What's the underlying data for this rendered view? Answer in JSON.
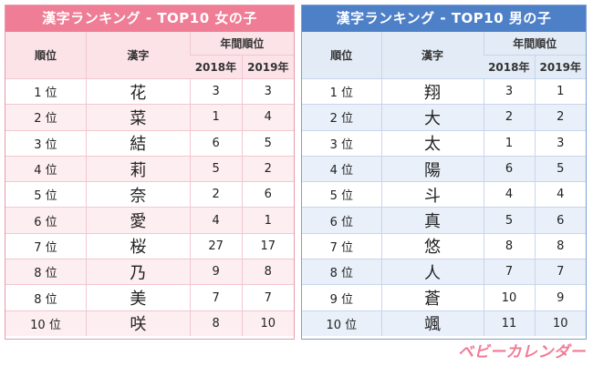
{
  "girls": {
    "title": "漢字ランキング - TOP10 女の子",
    "header": {
      "rank": "順位",
      "kanji": "漢字",
      "annual": "年間順位",
      "y2018": "2018年",
      "y2019": "2019年"
    },
    "rows": [
      {
        "rank": "1 位",
        "kanji": "花",
        "y2018": "3",
        "y2019": "3"
      },
      {
        "rank": "2 位",
        "kanji": "菜",
        "y2018": "1",
        "y2019": "4"
      },
      {
        "rank": "3 位",
        "kanji": "結",
        "y2018": "6",
        "y2019": "5"
      },
      {
        "rank": "4 位",
        "kanji": "莉",
        "y2018": "5",
        "y2019": "2"
      },
      {
        "rank": "5 位",
        "kanji": "奈",
        "y2018": "2",
        "y2019": "6"
      },
      {
        "rank": "6 位",
        "kanji": "愛",
        "y2018": "4",
        "y2019": "1"
      },
      {
        "rank": "7 位",
        "kanji": "桜",
        "y2018": "27",
        "y2019": "17"
      },
      {
        "rank": "8 位",
        "kanji": "乃",
        "y2018": "9",
        "y2019": "8"
      },
      {
        "rank": "8 位",
        "kanji": "美",
        "y2018": "7",
        "y2019": "7"
      },
      {
        "rank": "10 位",
        "kanji": "咲",
        "y2018": "8",
        "y2019": "10"
      }
    ]
  },
  "boys": {
    "title": "漢字ランキング - TOP10 男の子",
    "header": {
      "rank": "順位",
      "kanji": "漢字",
      "annual": "年間順位",
      "y2018": "2018年",
      "y2019": "2019年"
    },
    "rows": [
      {
        "rank": "1 位",
        "kanji": "翔",
        "y2018": "3",
        "y2019": "1"
      },
      {
        "rank": "2 位",
        "kanji": "大",
        "y2018": "2",
        "y2019": "2"
      },
      {
        "rank": "3 位",
        "kanji": "太",
        "y2018": "1",
        "y2019": "3"
      },
      {
        "rank": "4 位",
        "kanji": "陽",
        "y2018": "6",
        "y2019": "5"
      },
      {
        "rank": "5 位",
        "kanji": "斗",
        "y2018": "4",
        "y2019": "4"
      },
      {
        "rank": "6 位",
        "kanji": "真",
        "y2018": "5",
        "y2019": "6"
      },
      {
        "rank": "7 位",
        "kanji": "悠",
        "y2018": "8",
        "y2019": "8"
      },
      {
        "rank": "8 位",
        "kanji": "人",
        "y2018": "7",
        "y2019": "7"
      },
      {
        "rank": "9 位",
        "kanji": "蒼",
        "y2018": "10",
        "y2019": "9"
      },
      {
        "rank": "10 位",
        "kanji": "颯",
        "y2018": "11",
        "y2019": "10"
      }
    ]
  },
  "logo": "ベビーカレンダー",
  "colors": {
    "girls_accent": "#ee7d95",
    "boys_accent": "#4e80c8"
  }
}
